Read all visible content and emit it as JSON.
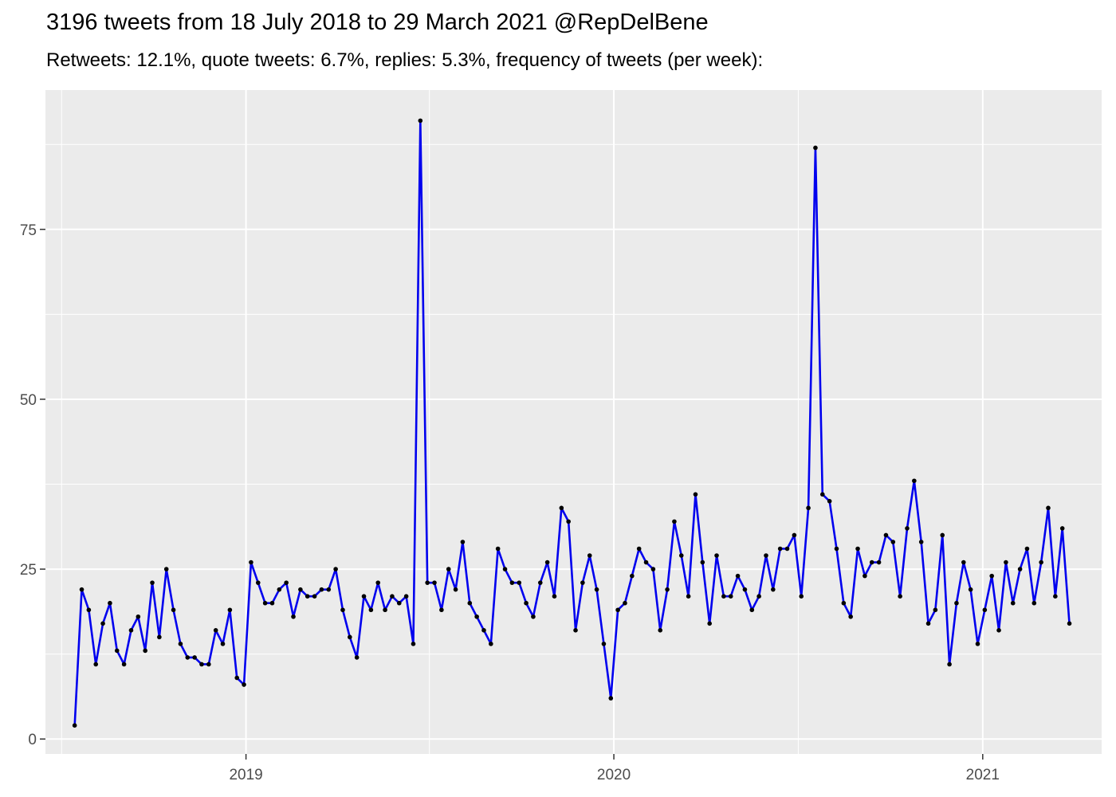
{
  "chart_data": {
    "type": "line",
    "title": "3196 tweets from 18 July 2018 to 29 March 2021 @RepDelBene",
    "subtitle": "Retweets: 12.1%, quote tweets: 6.7%, replies: 5.3%, frequency of tweets (per week):",
    "xlabel": "",
    "ylabel": "",
    "x_ticks": [
      "2019",
      "2020",
      "2021"
    ],
    "y_ticks": [
      0,
      25,
      50,
      75
    ],
    "ylim": [
      -2.2,
      95.5
    ],
    "xlim": [
      "2018-06-16",
      "2021-04-29"
    ],
    "grid": true,
    "line_color": "#0000ee",
    "point_color": "#000000",
    "panel_background": "#ebebeb",
    "x": [
      "2018-07-15",
      "2018-07-22",
      "2018-07-29",
      "2018-08-05",
      "2018-08-12",
      "2018-08-19",
      "2018-08-26",
      "2018-09-02",
      "2018-09-09",
      "2018-09-16",
      "2018-09-23",
      "2018-09-30",
      "2018-10-07",
      "2018-10-14",
      "2018-10-21",
      "2018-10-28",
      "2018-11-04",
      "2018-11-11",
      "2018-11-18",
      "2018-11-25",
      "2018-12-02",
      "2018-12-09",
      "2018-12-16",
      "2018-12-23",
      "2018-12-30",
      "2019-01-06",
      "2019-01-13",
      "2019-01-20",
      "2019-01-27",
      "2019-02-03",
      "2019-02-10",
      "2019-02-17",
      "2019-02-24",
      "2019-03-03",
      "2019-03-10",
      "2019-03-17",
      "2019-03-24",
      "2019-03-31",
      "2019-04-07",
      "2019-04-14",
      "2019-04-21",
      "2019-04-28",
      "2019-05-05",
      "2019-05-12",
      "2019-05-19",
      "2019-05-26",
      "2019-06-02",
      "2019-06-09",
      "2019-06-16",
      "2019-06-23",
      "2019-06-30",
      "2019-07-07",
      "2019-07-14",
      "2019-07-21",
      "2019-07-28",
      "2019-08-04",
      "2019-08-11",
      "2019-08-18",
      "2019-08-25",
      "2019-09-01",
      "2019-09-08",
      "2019-09-15",
      "2019-09-22",
      "2019-09-29",
      "2019-10-06",
      "2019-10-13",
      "2019-10-20",
      "2019-10-27",
      "2019-11-03",
      "2019-11-10",
      "2019-11-17",
      "2019-11-24",
      "2019-12-01",
      "2019-12-08",
      "2019-12-15",
      "2019-12-22",
      "2019-12-29",
      "2020-01-05",
      "2020-01-12",
      "2020-01-19",
      "2020-01-26",
      "2020-02-02",
      "2020-02-09",
      "2020-02-16",
      "2020-02-23",
      "2020-03-01",
      "2020-03-08",
      "2020-03-15",
      "2020-03-22",
      "2020-03-29",
      "2020-04-05",
      "2020-04-12",
      "2020-04-19",
      "2020-04-26",
      "2020-05-03",
      "2020-05-10",
      "2020-05-17",
      "2020-05-24",
      "2020-05-31",
      "2020-06-07",
      "2020-06-14",
      "2020-06-21",
      "2020-06-28",
      "2020-07-05",
      "2020-07-12",
      "2020-07-19",
      "2020-07-26",
      "2020-08-02",
      "2020-08-09",
      "2020-08-16",
      "2020-08-23",
      "2020-08-30",
      "2020-09-06",
      "2020-09-13",
      "2020-09-20",
      "2020-09-27",
      "2020-10-04",
      "2020-10-11",
      "2020-10-18",
      "2020-10-25",
      "2020-11-01",
      "2020-11-08",
      "2020-11-15",
      "2020-11-22",
      "2020-11-29",
      "2020-12-06",
      "2020-12-13",
      "2020-12-20",
      "2020-12-27",
      "2021-01-03",
      "2021-01-10",
      "2021-01-17",
      "2021-01-24",
      "2021-01-31",
      "2021-02-07",
      "2021-02-14",
      "2021-02-21",
      "2021-02-28",
      "2021-03-07",
      "2021-03-14",
      "2021-03-21",
      "2021-03-28"
    ],
    "y": [
      2,
      22,
      19,
      11,
      17,
      20,
      13,
      11,
      16,
      18,
      13,
      23,
      15,
      25,
      19,
      14,
      12,
      12,
      11,
      11,
      16,
      14,
      19,
      9,
      8,
      26,
      23,
      20,
      20,
      22,
      23,
      18,
      22,
      21,
      21,
      22,
      22,
      25,
      19,
      15,
      12,
      21,
      19,
      23,
      19,
      21,
      20,
      21,
      14,
      91,
      23,
      23,
      19,
      25,
      22,
      29,
      20,
      18,
      16,
      14,
      28,
      25,
      23,
      23,
      20,
      18,
      23,
      26,
      21,
      34,
      32,
      16,
      23,
      27,
      22,
      14,
      6,
      19,
      20,
      24,
      28,
      26,
      25,
      16,
      22,
      32,
      27,
      21,
      36,
      26,
      17,
      27,
      21,
      21,
      24,
      22,
      19,
      21,
      27,
      22,
      28,
      28,
      30,
      21,
      34,
      87,
      36,
      35,
      28,
      20,
      18,
      28,
      24,
      26,
      26,
      30,
      29,
      21,
      31,
      38,
      29,
      17,
      19,
      30,
      11,
      20,
      26,
      22,
      14,
      19,
      24,
      16,
      26,
      20,
      25,
      28,
      20,
      26,
      34,
      21,
      31,
      17
    ]
  }
}
